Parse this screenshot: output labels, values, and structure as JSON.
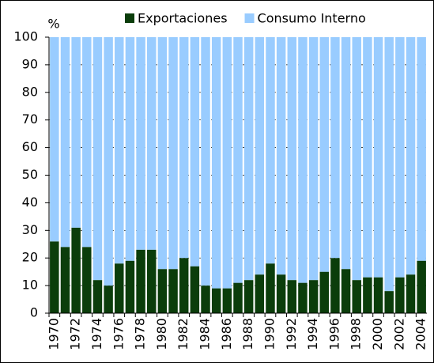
{
  "chart_data": {
    "type": "stacked_bar",
    "y_label": "%",
    "categories": [
      "1970",
      null,
      "1972",
      null,
      "1974",
      null,
      "1976",
      null,
      "1978",
      null,
      "1980",
      null,
      "1982",
      null,
      "1984",
      null,
      "1986",
      null,
      "1988",
      null,
      "1990",
      null,
      "1992",
      null,
      "1994",
      null,
      "1996",
      null,
      "1998",
      null,
      "2000",
      null,
      "2002",
      null,
      "2004"
    ],
    "series": [
      {
        "name": "Exportaciones",
        "color": "#0b3d0b",
        "values": [
          26,
          24,
          31,
          24,
          12,
          10,
          18,
          19,
          23,
          23,
          16,
          16,
          20,
          17,
          10,
          9,
          9,
          11,
          12,
          14,
          18,
          14,
          12,
          11,
          12,
          15,
          20,
          16,
          12,
          13,
          13,
          8,
          13,
          14,
          19
        ]
      },
      {
        "name": "Consumo Interno",
        "color": "#99ccff",
        "values": [
          74,
          76,
          69,
          76,
          88,
          90,
          82,
          81,
          77,
          77,
          84,
          84,
          80,
          83,
          90,
          91,
          91,
          89,
          88,
          86,
          82,
          86,
          88,
          89,
          88,
          85,
          80,
          84,
          88,
          87,
          87,
          92,
          87,
          86,
          81
        ]
      }
    ],
    "ylim": [
      0,
      100
    ],
    "yticks": [
      0,
      10,
      20,
      30,
      40,
      50,
      60,
      70,
      80,
      90,
      100
    ],
    "grid": true
  }
}
